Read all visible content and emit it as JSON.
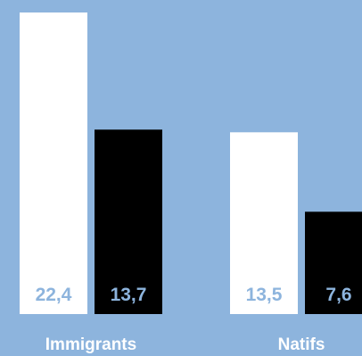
{
  "chart_data": {
    "type": "bar",
    "categories": [
      "Immigrants",
      "Natifs"
    ],
    "series": [
      {
        "values": [
          22.4,
          13.5
        ],
        "color": "#ffffff",
        "labels": [
          "22,4",
          "13,5"
        ],
        "label_color": "#8db4dd"
      },
      {
        "values": [
          13.7,
          7.6
        ],
        "color": "#000000",
        "labels": [
          "13,7",
          "7,6"
        ],
        "label_color": "#8db4dd"
      }
    ],
    "ylim": [
      0,
      22.4
    ],
    "background": "#8db4dd",
    "category_label_color": "#ffffff"
  }
}
